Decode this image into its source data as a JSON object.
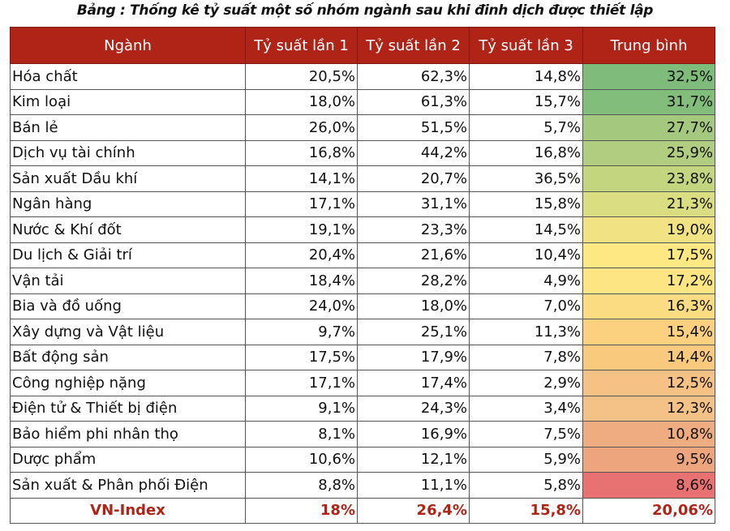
{
  "title": "Bảng : Thống kê tỷ suất một số nhóm ngành sau khi đinh dịch được thiết lập",
  "headers": [
    "Ngành",
    "Tỷ suất lần 1",
    "Tỷ suất lần 2",
    "Tỷ suất lần 3",
    "Trung bình"
  ],
  "rows": [
    {
      "name": "Hóa chất",
      "r1": "20,5%",
      "r2": "62,3%",
      "r3": "14,8%",
      "avg": "32,5%",
      "color": "#7fbb7b"
    },
    {
      "name": "Kim loại",
      "r1": "18,0%",
      "r2": "61,3%",
      "r3": "15,7%",
      "avg": "31,7%",
      "color": "#83bd7b"
    },
    {
      "name": "Bán lẻ",
      "r1": "26,0%",
      "r2": "51,5%",
      "r3": "5,7%",
      "avg": "27,7%",
      "color": "#a4c97e"
    },
    {
      "name": "Dịch vụ tài chính",
      "r1": "16,8%",
      "r2": "44,2%",
      "r3": "16,8%",
      "avg": "25,9%",
      "color": "#b1cd7f"
    },
    {
      "name": "Sản xuất Dầu khí",
      "r1": "14,1%",
      "r2": "20,7%",
      "r3": "36,5%",
      "avg": "23,8%",
      "color": "#c4d580"
    },
    {
      "name": "Ngân hàng",
      "r1": "17,1%",
      "r2": "31,1%",
      "r3": "15,8%",
      "avg": "21,3%",
      "color": "#dbdd82"
    },
    {
      "name": "Nước & Khí đốt",
      "r1": "19,1%",
      "r2": "23,3%",
      "r3": "14,5%",
      "avg": "19,0%",
      "color": "#f1e384"
    },
    {
      "name": "Du lịch & Giải trí",
      "r1": "20,4%",
      "r2": "21,6%",
      "r3": "10,4%",
      "avg": "17,5%",
      "color": "#fde884"
    },
    {
      "name": "Vận tải",
      "r1": "18,4%",
      "r2": "28,2%",
      "r3": "4,9%",
      "avg": "17,2%",
      "color": "#fde583"
    },
    {
      "name": "Bia và đồ uống",
      "r1": "24,0%",
      "r2": "18,0%",
      "r3": "7,0%",
      "avg": "16,3%",
      "color": "#fcdc82"
    },
    {
      "name": "Xây dựng và Vật liệu",
      "r1": "9,7%",
      "r2": "25,1%",
      "r3": "11,3%",
      "avg": "15,4%",
      "color": "#fbd180"
    },
    {
      "name": "Bất động sản",
      "r1": "17,5%",
      "r2": "17,9%",
      "r3": "7,8%",
      "avg": "14,4%",
      "color": "#f9c97e"
    },
    {
      "name": "Công nghiệp nặng",
      "r1": "17,1%",
      "r2": "17,4%",
      "r3": "2,9%",
      "avg": "12,5%",
      "color": "#f6c184"
    },
    {
      "name": "Điện tử & Thiết bị điện",
      "r1": "9,1%",
      "r2": "24,3%",
      "r3": "3,4%",
      "avg": "12,3%",
      "color": "#f4c287"
    },
    {
      "name": "Bảo hiểm phi nhân thọ",
      "r1": "8,1%",
      "r2": "16,9%",
      "r3": "7,5%",
      "avg": "10,8%",
      "color": "#eeac80"
    },
    {
      "name": "Dược phẩm",
      "r1": "10,6%",
      "r2": "12,1%",
      "r3": "5,9%",
      "avg": "9,5%",
      "color": "#eda57d"
    },
    {
      "name": "Sản xuất & Phân phối Điện",
      "r1": "8,8%",
      "r2": "11,1%",
      "r3": "5,8%",
      "avg": "8,6%",
      "color": "#e87272"
    }
  ],
  "total": {
    "name": "VN-Index",
    "r1": "18%",
    "r2": "26,4%",
    "r3": "15,8%",
    "avg": "20,06%"
  }
}
